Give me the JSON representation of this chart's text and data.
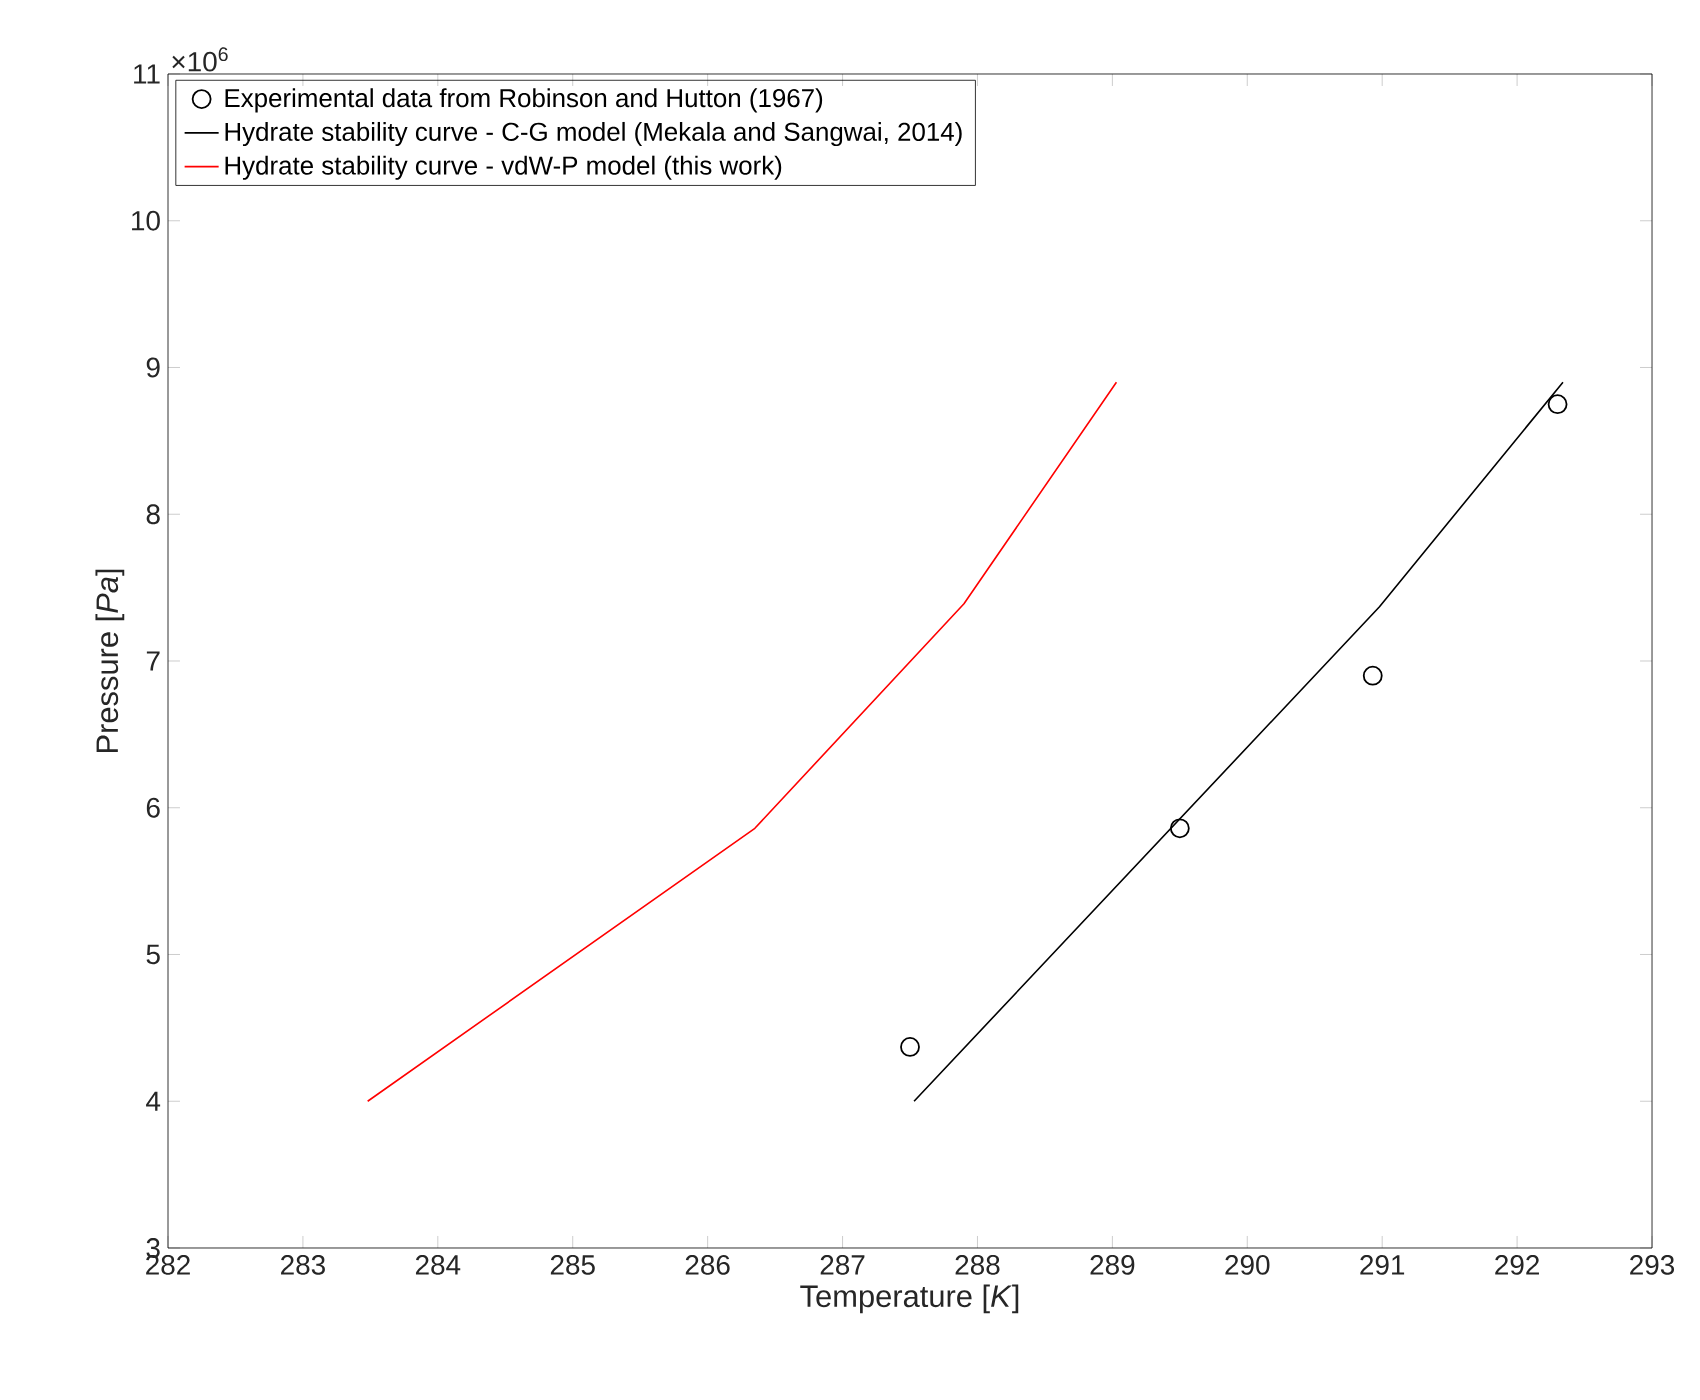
{
  "chart_data": {
    "type": "line",
    "xlabel": "Temperature [*K*]",
    "ylabel": "Pressure [*Pa*]",
    "annotations": [
      "×10$^{6}$"
    ],
    "xlim": [
      282,
      293
    ],
    "xticks": [
      282,
      283,
      284,
      285,
      286,
      287,
      288,
      289,
      290,
      291,
      292,
      293
    ],
    "ylim": [
      3,
      11
    ],
    "yticks": [
      3,
      4,
      5,
      6,
      7,
      8,
      9,
      10,
      11
    ],
    "legend": "top left",
    "series": [
      {
        "name": "Experimental data from Robinson and Hutton (1967)",
        "type": "scatter",
        "marker": "circle",
        "color": "#000000",
        "x": [
          287.5,
          289.5,
          290.93,
          292.3
        ],
        "values": [
          4.37,
          5.86,
          6.9,
          8.75
        ]
      },
      {
        "name": "Hydrate stability curve - C-G model (Mekala and Sangwai, 2014)",
        "color": "#000000",
        "x": [
          287.53,
          290.98,
          292.34
        ],
        "values": [
          4.0,
          7.37,
          8.9
        ]
      },
      {
        "name": "Hydrate stability curve - vdW-P model (this work)",
        "color": "#ff0000",
        "x": [
          283.48,
          286.35,
          287.9,
          289.03
        ],
        "values": [
          4.0,
          5.86,
          7.39,
          8.9
        ]
      }
    ]
  }
}
